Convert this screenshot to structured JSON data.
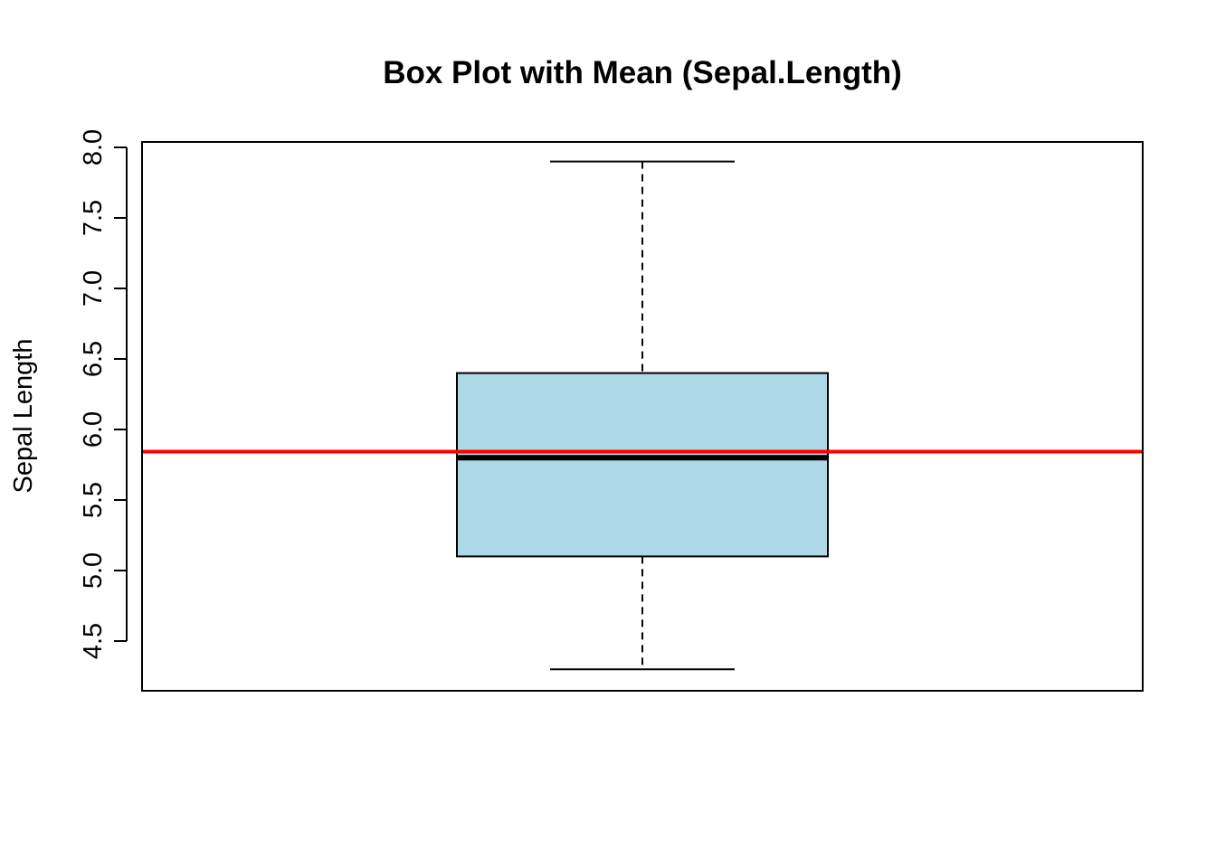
{
  "chart_data": {
    "type": "box",
    "title": "Box Plot with Mean (Sepal.Length)",
    "xlabel": "",
    "ylabel": "Sepal Length",
    "ylim": [
      4.2,
      8.1
    ],
    "yticks": [
      "4.5",
      "5.0",
      "5.5",
      "6.0",
      "6.5",
      "7.0",
      "7.5",
      "8.0"
    ],
    "box": {
      "min": 4.3,
      "q1": 5.1,
      "median": 5.8,
      "q3": 6.4,
      "max": 7.9
    },
    "mean": 5.843,
    "colors": {
      "box_fill": "#ADD8E6",
      "mean_line": "#FF0000",
      "stroke": "#000000"
    },
    "grid": false
  }
}
